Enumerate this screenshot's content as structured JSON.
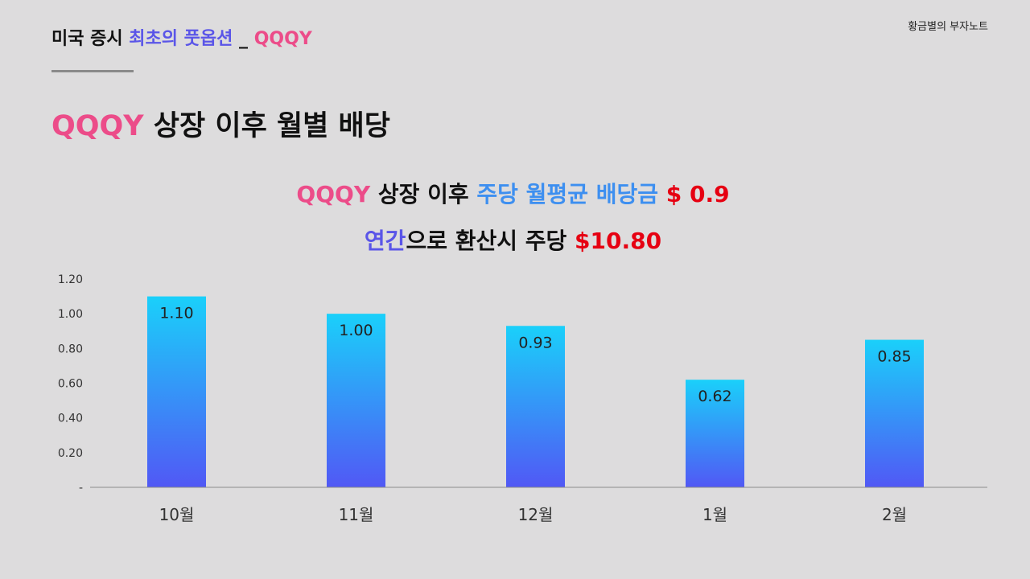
{
  "brand": "황금별의 부자노트",
  "header": {
    "part1": "미국 증시 ",
    "part2": "최초의 풋옵션",
    "part3": " _ ",
    "part4": "QQQY"
  },
  "main_title": {
    "part1": "QQQY",
    "part2": " 상장 이후 월별 배당"
  },
  "subtitle_1": {
    "part1": "QQQY",
    "part2": " 상장 이후 ",
    "part3": "주당 월평균 배당금",
    "part4": " $ 0.9"
  },
  "subtitle_2": {
    "part1": "연간",
    "part2": "으로 환산시 주당 ",
    "part3": "$10.80"
  },
  "colors": {
    "pink": "#ec4c89",
    "purple": "#5a55e8",
    "blue": "#3d8ff0",
    "red": "#e60012",
    "bar_top": "#1ad0fa",
    "bar_bottom": "#5158f5"
  },
  "chart_data": {
    "type": "bar",
    "categories": [
      "10월",
      "11월",
      "12월",
      "1월",
      "2월"
    ],
    "values": [
      1.1,
      1.0,
      0.93,
      0.62,
      0.85
    ],
    "data_labels": [
      "1.10",
      "1.00",
      "0.93",
      "0.62",
      "0.85"
    ],
    "ylim": [
      0,
      1.2
    ],
    "yticks": [
      0,
      0.2,
      0.4,
      0.6,
      0.8,
      1.0,
      1.2
    ],
    "ytick_labels": [
      "-",
      "0.20",
      "0.40",
      "0.60",
      "0.80",
      "1.00",
      "1.20"
    ],
    "grid": false,
    "legend": "none"
  }
}
